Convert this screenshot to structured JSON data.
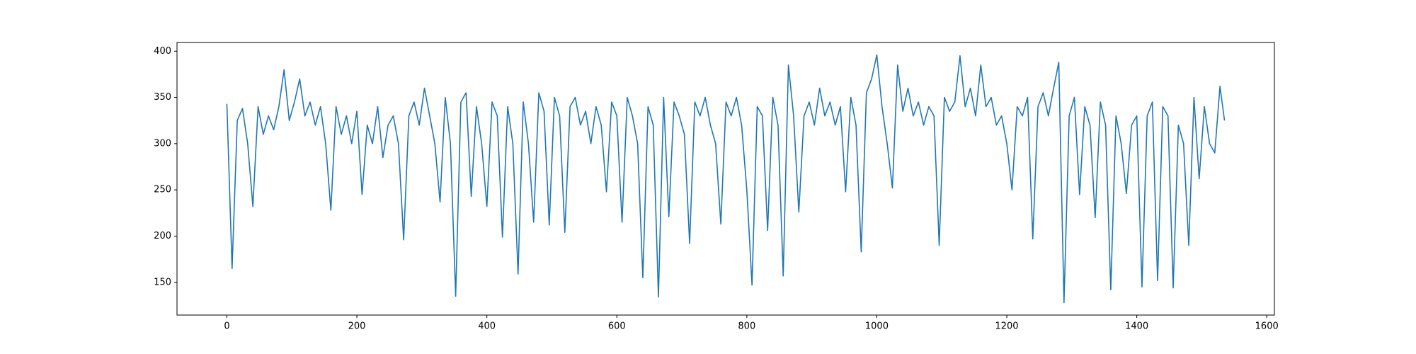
{
  "chart_data": {
    "type": "line",
    "color": "#1f77b4",
    "x": [
      0,
      8,
      16,
      24,
      32,
      40,
      48,
      56,
      64,
      72,
      80,
      88,
      96,
      104,
      112,
      120,
      128,
      136,
      144,
      152,
      160,
      168,
      176,
      184,
      192,
      200,
      208,
      216,
      224,
      232,
      240,
      248,
      256,
      264,
      272,
      280,
      288,
      296,
      304,
      312,
      320,
      328,
      336,
      344,
      352,
      360,
      368,
      376,
      384,
      392,
      400,
      408,
      416,
      424,
      432,
      440,
      448,
      456,
      464,
      472,
      480,
      488,
      496,
      504,
      512,
      520,
      528,
      536,
      544,
      552,
      560,
      568,
      576,
      584,
      592,
      600,
      608,
      616,
      624,
      632,
      640,
      648,
      656,
      664,
      672,
      680,
      688,
      696,
      704,
      712,
      720,
      728,
      736,
      744,
      752,
      760,
      768,
      776,
      784,
      792,
      800,
      808,
      816,
      824,
      832,
      840,
      848,
      856,
      864,
      872,
      880,
      888,
      896,
      904,
      912,
      920,
      928,
      936,
      944,
      952,
      960,
      968,
      976,
      984,
      992,
      1000,
      1008,
      1016,
      1024,
      1032,
      1040,
      1048,
      1056,
      1064,
      1072,
      1080,
      1088,
      1096,
      1104,
      1112,
      1120,
      1128,
      1136,
      1144,
      1152,
      1160,
      1168,
      1176,
      1184,
      1192,
      1200,
      1208,
      1216,
      1224,
      1232,
      1240,
      1248,
      1256,
      1264,
      1272,
      1280,
      1288,
      1296,
      1304,
      1312,
      1320,
      1328,
      1336,
      1344,
      1352,
      1360,
      1368,
      1376,
      1384,
      1392,
      1400,
      1408,
      1416,
      1424,
      1432,
      1440,
      1448,
      1456,
      1464,
      1472,
      1480,
      1488,
      1496,
      1504,
      1512,
      1520,
      1528,
      1535
    ],
    "values": [
      343,
      165,
      325,
      338,
      300,
      232,
      340,
      310,
      330,
      315,
      340,
      380,
      325,
      345,
      370,
      330,
      345,
      320,
      340,
      300,
      228,
      340,
      310,
      330,
      300,
      335,
      245,
      320,
      300,
      340,
      285,
      320,
      330,
      300,
      196,
      330,
      345,
      320,
      360,
      330,
      300,
      237,
      350,
      300,
      135,
      345,
      355,
      243,
      340,
      300,
      232,
      345,
      330,
      199,
      340,
      300,
      159,
      345,
      300,
      215,
      355,
      335,
      212,
      350,
      330,
      204,
      340,
      350,
      320,
      335,
      300,
      340,
      320,
      248,
      345,
      330,
      215,
      350,
      330,
      300,
      155,
      340,
      320,
      134,
      350,
      221,
      345,
      330,
      310,
      192,
      345,
      330,
      350,
      320,
      300,
      213,
      345,
      330,
      350,
      320,
      250,
      147,
      340,
      330,
      206,
      350,
      320,
      157,
      385,
      330,
      226,
      330,
      345,
      320,
      360,
      330,
      345,
      320,
      340,
      248,
      350,
      320,
      183,
      355,
      370,
      396,
      340,
      300,
      252,
      385,
      335,
      360,
      330,
      345,
      320,
      340,
      330,
      190,
      350,
      335,
      345,
      395,
      340,
      360,
      330,
      385,
      340,
      350,
      320,
      330,
      300,
      250,
      340,
      330,
      350,
      197,
      340,
      355,
      330,
      360,
      388,
      128,
      330,
      350,
      245,
      340,
      320,
      220,
      345,
      320,
      142,
      330,
      300,
      246,
      320,
      330,
      145,
      330,
      345,
      152,
      340,
      330,
      144,
      320,
      300,
      190,
      350,
      262,
      340,
      300,
      290,
      362,
      325
    ],
    "xlim": [
      -76.75,
      1611.75
    ],
    "ylim": [
      114.6,
      409.4
    ],
    "xticks": [
      0,
      200,
      400,
      600,
      800,
      1000,
      1200,
      1400,
      1600
    ],
    "yticks": [
      150,
      200,
      250,
      300,
      350,
      400
    ]
  }
}
